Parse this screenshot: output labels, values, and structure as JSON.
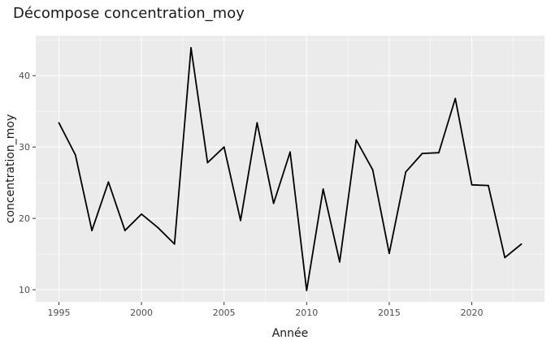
{
  "chart_data": {
    "type": "line",
    "title": "Décompose concentration_moy",
    "xlabel": "Année",
    "ylabel": "concentration_moy",
    "xlim": [
      1993.6,
      2024.4
    ],
    "ylim": [
      8.3,
      45.6
    ],
    "xticks": [
      1995,
      2000,
      2005,
      2010,
      2015,
      2020
    ],
    "yticks": [
      10,
      20,
      30,
      40
    ],
    "grid": true,
    "legend": "none",
    "colors": {
      "panel": "#ebebeb",
      "grid_major": "#ffffff",
      "line": "#000000"
    },
    "series": [
      {
        "x": [
          1995,
          1996,
          1997,
          1998,
          1999,
          2000,
          2001,
          2002,
          2003,
          2004,
          2005,
          2006,
          2007,
          2008,
          2009,
          2010,
          2011,
          2012,
          2013,
          2014,
          2015,
          2016,
          2017,
          2018,
          2019,
          2020,
          2021,
          2022,
          2023
        ],
        "values": [
          33.4,
          28.9,
          18.3,
          25.1,
          18.3,
          20.6,
          18.7,
          16.4,
          43.9,
          27.8,
          30.0,
          19.7,
          33.4,
          22.1,
          29.3,
          9.9,
          24.1,
          13.9,
          31.0,
          26.8,
          15.1,
          26.5,
          29.1,
          29.2,
          36.8,
          24.7,
          24.6,
          14.5,
          16.4
        ]
      }
    ]
  }
}
